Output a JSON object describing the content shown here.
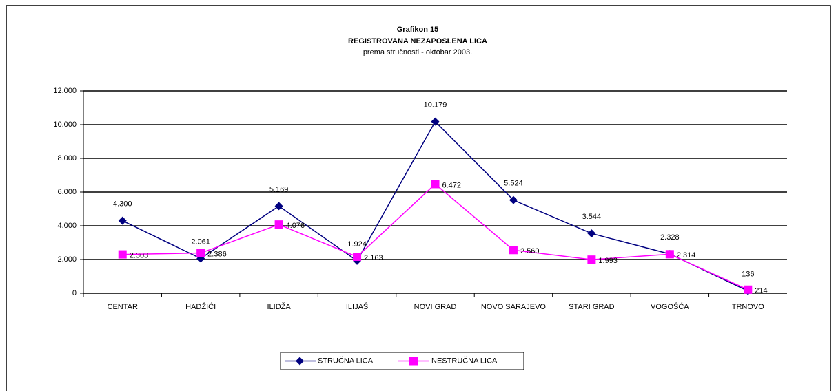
{
  "chart_data": {
    "type": "line",
    "title": "Grafikon 15",
    "subtitle": "REGISTROVANA NEZAPOSLENA LICA",
    "subtitle2": "prema stručnosti - oktobar  2003.",
    "categories": [
      "CENTAR",
      "HADŽIĆI",
      "ILIDŽA",
      "ILIJAŠ",
      "NOVI GRAD",
      "NOVO SARAJEVO",
      "STARI GRAD",
      "VOGOŠĆA",
      "TRNOVO"
    ],
    "series": [
      {
        "name": "STRUČNA LICA",
        "color": "#000080",
        "marker": "diamond",
        "values": [
          4300,
          2061,
          5169,
          1924,
          10179,
          5524,
          3544,
          2328,
          136
        ],
        "value_labels": [
          "4.300",
          "2.061",
          "5.169",
          "1.924",
          "10.179",
          "5.524",
          "3.544",
          "2.328",
          "136"
        ]
      },
      {
        "name": "NESTRUČNA LICA",
        "color": "#ff00ff",
        "marker": "square",
        "values": [
          2303,
          2386,
          4076,
          2163,
          6472,
          2560,
          1993,
          2314,
          214
        ],
        "value_labels": [
          "2.303",
          "2.386",
          "4.076",
          "2.163",
          "6.472",
          "2.560",
          "1.993",
          "2.314",
          "214"
        ]
      }
    ],
    "ylim": [
      0,
      12000
    ],
    "yticks": [
      0,
      {
        "value": 2000,
        "label": "2.000"
      },
      {
        "value": 4000,
        "label": "4.000"
      },
      {
        "value": 6000,
        "label": "6.000"
      },
      {
        "value": 8000,
        "label": "8.000"
      },
      {
        "value": 10000,
        "label": "10.000"
      },
      {
        "value": 12000,
        "label": "12.000"
      }
    ],
    "grid": true,
    "legend": "bottom"
  }
}
